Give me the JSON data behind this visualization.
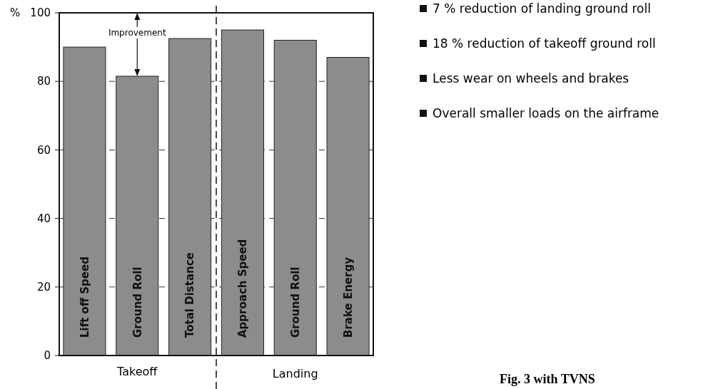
{
  "chart_data": {
    "type": "bar",
    "categories": [
      "Lift off Speed",
      "Ground Roll",
      "Total Distance",
      "Approach Speed",
      "Ground Roll",
      "Brake Energy"
    ],
    "values": [
      90,
      81.5,
      92.5,
      95,
      92,
      87
    ],
    "color": "#8c8c8c",
    "ylabel": "%",
    "ylim": [
      0,
      100
    ],
    "yticks": [
      0,
      20,
      40,
      60,
      80,
      100
    ],
    "grid": "y",
    "annotations": [
      "Improvement",
      "Takeoff",
      "Landing",
      "7 % reduction of landing ground roll",
      "18 % reduction of takeoff ground roll",
      "Less wear on wheels and brakes",
      "Overall smaller loads on the airframe",
      "Fig. 3 with TVNS"
    ]
  }
}
